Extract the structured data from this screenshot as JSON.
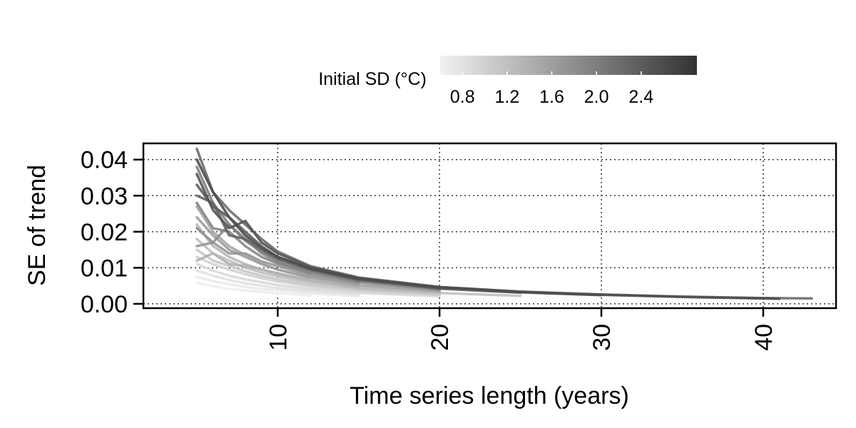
{
  "chart_data": {
    "type": "line",
    "xlabel": "Time series length (years)",
    "ylabel": "SE of trend",
    "xlim": [
      1.7,
      44.5
    ],
    "ylim": [
      -0.0012,
      0.0445
    ],
    "xticks": [
      10,
      20,
      30,
      40
    ],
    "yticks": [
      0.0,
      0.01,
      0.02,
      0.03,
      0.04
    ],
    "xtick_labels": [
      "10",
      "20",
      "30",
      "40"
    ],
    "ytick_labels": [
      "0.00",
      "0.01",
      "0.02",
      "0.03",
      "0.04"
    ],
    "grid": true,
    "grid_style": "dotted",
    "color_scale": {
      "title": "Initial SD (°C)",
      "range": [
        0.6,
        2.9
      ],
      "ticks": [
        0.8,
        1.2,
        1.6,
        2.0,
        2.4
      ],
      "tick_labels": [
        "0.8",
        "1.2",
        "1.6",
        "2.0",
        "2.4"
      ],
      "low_color": "#f2f2f2",
      "high_color": "#333333",
      "placement": "top"
    },
    "series": [
      {
        "sd": 2.6,
        "x": [
          5,
          6,
          7,
          8,
          9,
          10,
          12,
          15,
          20,
          25,
          30,
          35,
          41
        ],
        "y": [
          0.04,
          0.031,
          0.024,
          0.019,
          0.0155,
          0.013,
          0.0098,
          0.007,
          0.0046,
          0.0033,
          0.0025,
          0.0019,
          0.0014
        ]
      },
      {
        "sd": 2.5,
        "x": [
          5,
          6,
          7,
          8,
          9,
          10,
          12,
          15,
          20,
          25,
          30
        ],
        "y": [
          0.036,
          0.026,
          0.021,
          0.023,
          0.017,
          0.014,
          0.0102,
          0.0071,
          0.0045,
          0.0032,
          0.0024
        ]
      },
      {
        "sd": 2.4,
        "x": [
          5,
          6,
          7,
          8,
          9,
          10,
          12,
          15,
          20
        ],
        "y": [
          0.033,
          0.027,
          0.024,
          0.02,
          0.016,
          0.013,
          0.0097,
          0.0068,
          0.0043
        ]
      },
      {
        "sd": 2.3,
        "x": [
          5,
          6,
          7,
          8,
          9,
          10,
          12,
          15,
          20,
          25
        ],
        "y": [
          0.03,
          0.028,
          0.019,
          0.018,
          0.015,
          0.0125,
          0.0094,
          0.0066,
          0.0042,
          0.0031
        ]
      },
      {
        "sd": 2.2,
        "x": [
          5,
          6,
          7,
          8,
          9,
          10,
          12,
          15,
          20,
          25,
          30,
          35,
          40,
          43
        ],
        "y": [
          0.043,
          0.031,
          0.026,
          0.022,
          0.018,
          0.0145,
          0.0105,
          0.0073,
          0.0047,
          0.0034,
          0.0026,
          0.002,
          0.0016,
          0.0015
        ]
      },
      {
        "sd": 2.0,
        "x": [
          5,
          6,
          7,
          8,
          9,
          10,
          12,
          15
        ],
        "y": [
          0.038,
          0.028,
          0.022,
          0.0175,
          0.0145,
          0.012,
          0.009,
          0.0063
        ]
      },
      {
        "sd": 1.9,
        "x": [
          5,
          6,
          7,
          8,
          9,
          10,
          12,
          15,
          20
        ],
        "y": [
          0.028,
          0.021,
          0.02,
          0.016,
          0.013,
          0.0112,
          0.0085,
          0.006,
          0.0039
        ]
      },
      {
        "sd": 1.8,
        "x": [
          5,
          6,
          7,
          8,
          9,
          10,
          12
        ],
        "y": [
          0.021,
          0.017,
          0.022,
          0.018,
          0.014,
          0.0115,
          0.0084
        ]
      },
      {
        "sd": 1.7,
        "x": [
          5,
          6,
          7,
          8,
          9,
          10,
          12,
          15
        ],
        "y": [
          0.016,
          0.017,
          0.014,
          0.014,
          0.0118,
          0.0105,
          0.0078,
          0.0056
        ]
      },
      {
        "sd": 1.6,
        "x": [
          5,
          6,
          7,
          8,
          9,
          10,
          12,
          15,
          20
        ],
        "y": [
          0.024,
          0.019,
          0.015,
          0.013,
          0.011,
          0.0095,
          0.0073,
          0.0052,
          0.0035
        ]
      },
      {
        "sd": 1.5,
        "x": [
          5,
          6,
          7,
          8,
          9,
          10,
          12
        ],
        "y": [
          0.027,
          0.02,
          0.016,
          0.0135,
          0.0112,
          0.0095,
          0.0072
        ]
      },
      {
        "sd": 1.4,
        "x": [
          5,
          6,
          7,
          8,
          9,
          10,
          12,
          15
        ],
        "y": [
          0.012,
          0.014,
          0.011,
          0.0105,
          0.0095,
          0.0085,
          0.0066,
          0.0048
        ]
      },
      {
        "sd": 1.3,
        "x": [
          5,
          6,
          7,
          8,
          9,
          10,
          12,
          15,
          20
        ],
        "y": [
          0.022,
          0.016,
          0.013,
          0.011,
          0.0095,
          0.0082,
          0.0063,
          0.0045,
          0.0031
        ]
      },
      {
        "sd": 1.2,
        "x": [
          5,
          6,
          7,
          8,
          9,
          10,
          12,
          15,
          20,
          25
        ],
        "y": [
          0.018,
          0.014,
          0.012,
          0.01,
          0.0087,
          0.0076,
          0.0059,
          0.0043,
          0.003,
          0.0022
        ]
      },
      {
        "sd": 1.1,
        "x": [
          5,
          6,
          7,
          8,
          9,
          10,
          12,
          15,
          20
        ],
        "y": [
          0.015,
          0.012,
          0.0105,
          0.009,
          0.0078,
          0.0068,
          0.0053,
          0.0039,
          0.0027
        ]
      },
      {
        "sd": 1.0,
        "x": [
          5,
          6,
          7,
          8,
          9,
          10,
          12,
          15,
          20
        ],
        "y": [
          0.013,
          0.011,
          0.0095,
          0.0082,
          0.0071,
          0.0062,
          0.0048,
          0.0035,
          0.0024
        ]
      },
      {
        "sd": 0.9,
        "x": [
          5,
          6,
          7,
          8,
          9,
          10,
          12,
          15,
          20
        ],
        "y": [
          0.011,
          0.0092,
          0.0078,
          0.0068,
          0.006,
          0.0052,
          0.0041,
          0.003,
          0.0021
        ]
      },
      {
        "sd": 0.8,
        "x": [
          5,
          6,
          7,
          8,
          9,
          10,
          12,
          15
        ],
        "y": [
          0.0092,
          0.0078,
          0.0066,
          0.0057,
          0.005,
          0.0044,
          0.0035,
          0.0026
        ]
      },
      {
        "sd": 0.7,
        "x": [
          5,
          6,
          7,
          8,
          9,
          10,
          12,
          15
        ],
        "y": [
          0.0075,
          0.0063,
          0.0054,
          0.0047,
          0.0041,
          0.0037,
          0.0029,
          0.0021
        ]
      },
      {
        "sd": 0.65,
        "x": [
          5,
          6,
          7,
          8,
          9,
          10,
          12
        ],
        "y": [
          0.0058,
          0.0049,
          0.0042,
          0.0037,
          0.0033,
          0.0029,
          0.0023
        ]
      }
    ]
  }
}
